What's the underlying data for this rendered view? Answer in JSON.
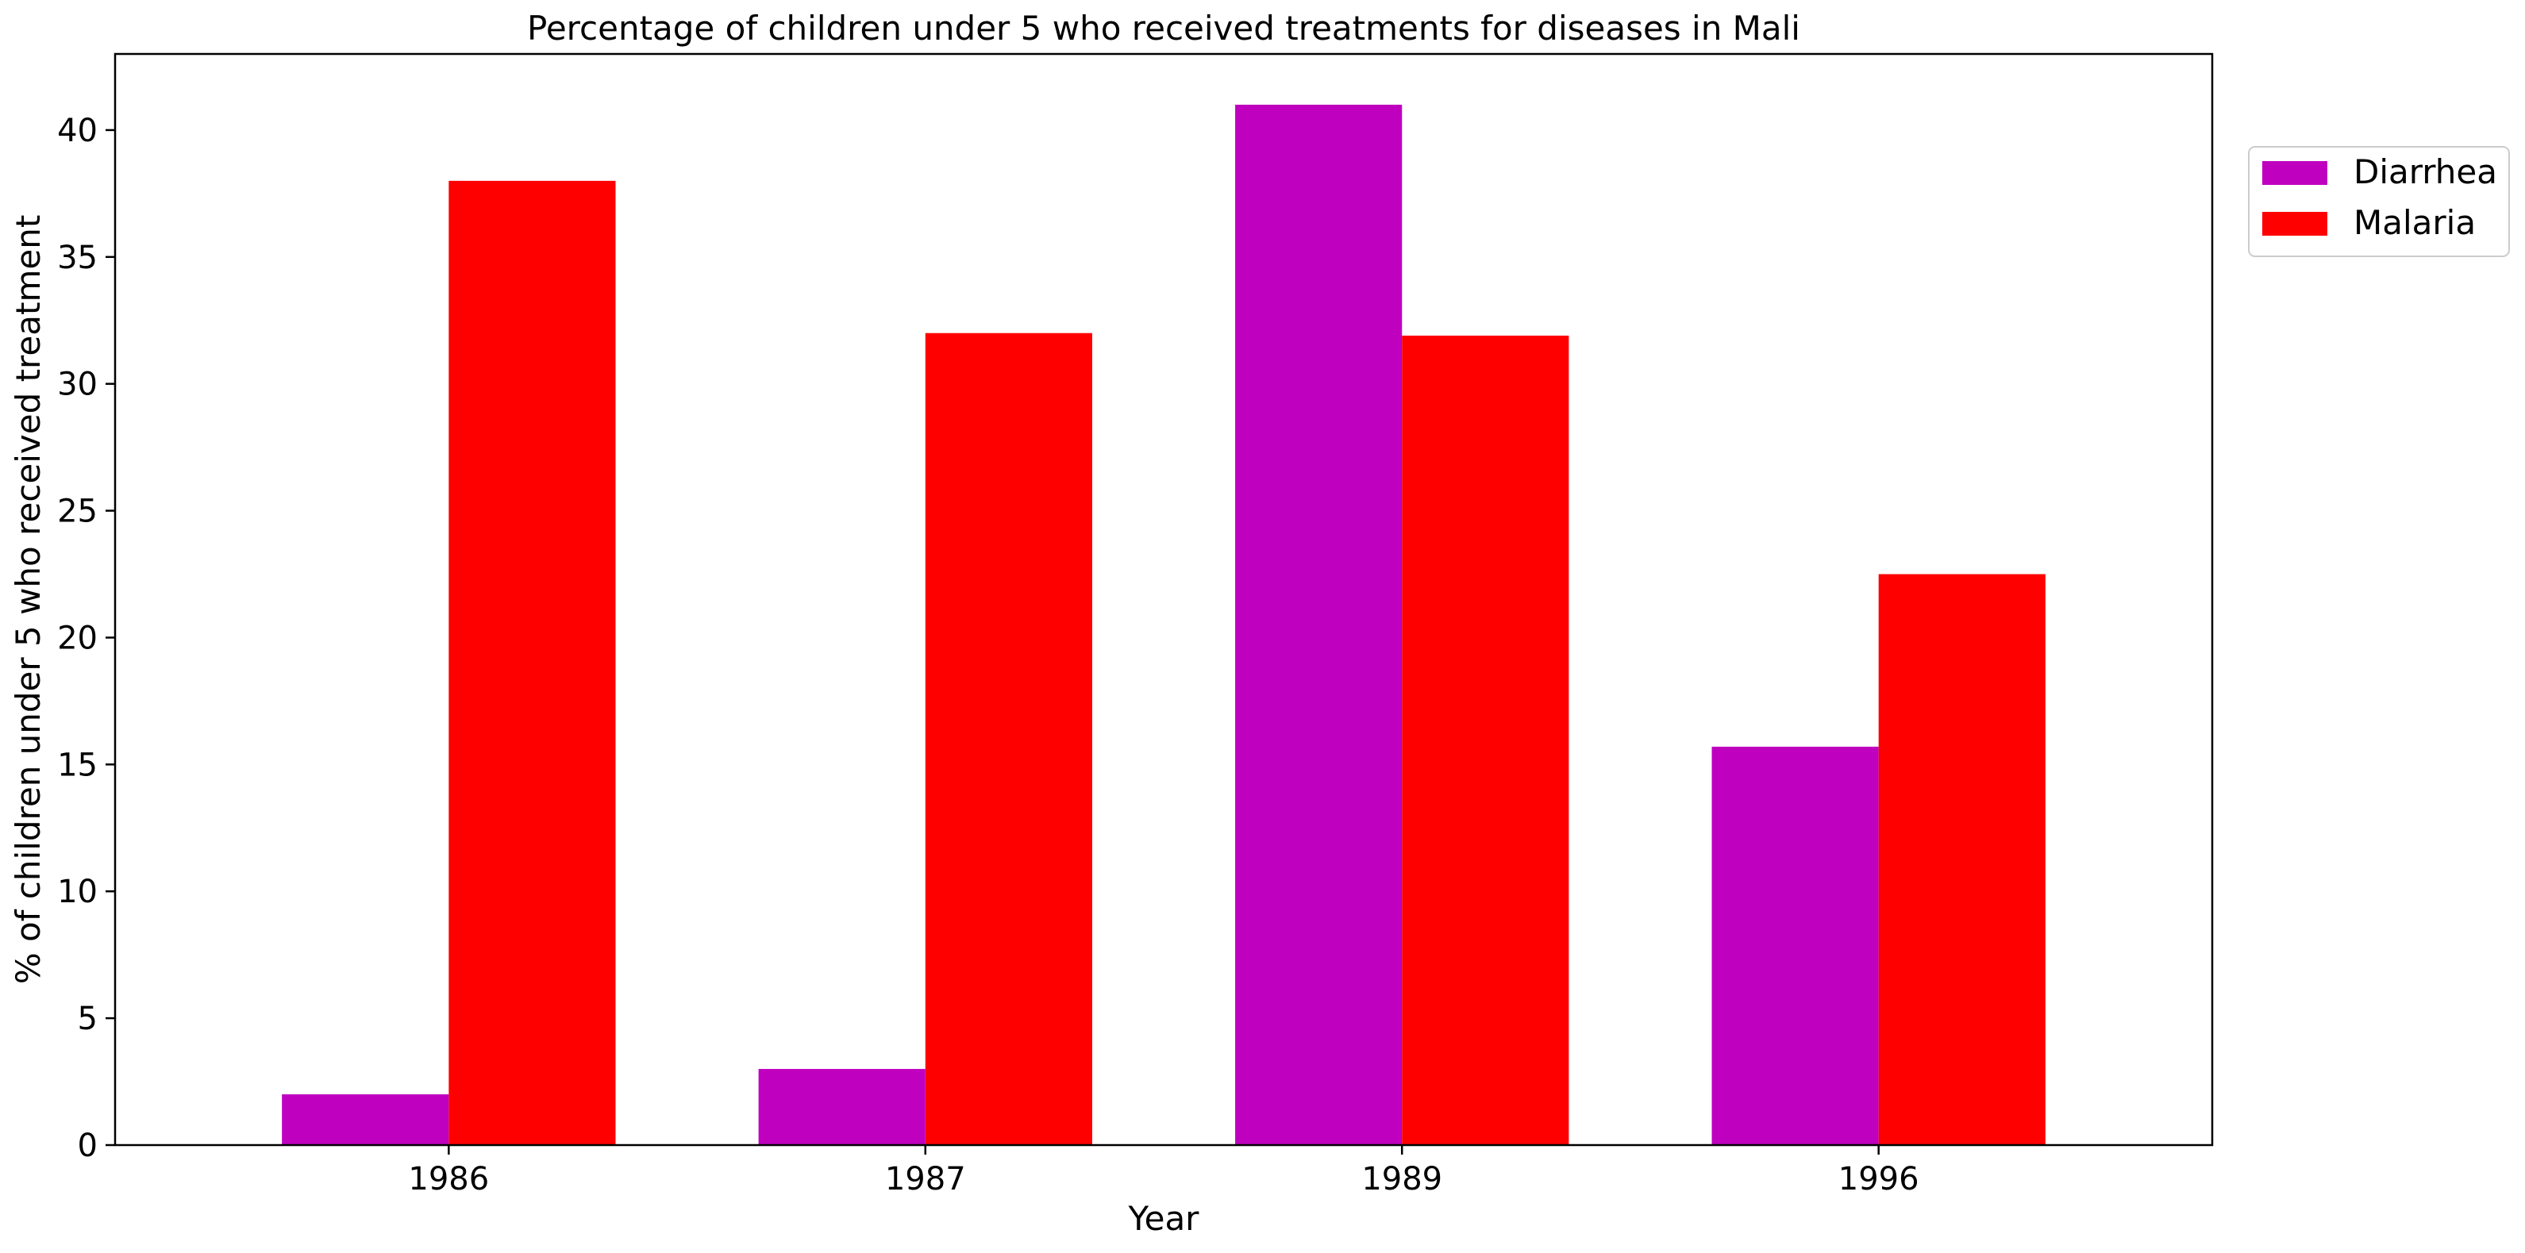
{
  "chart_data": {
    "type": "bar",
    "title": "Percentage of children under 5 who received treatments for diseases in Mali",
    "xlabel": "Year",
    "ylabel": "% of children under 5 who received treatment",
    "categories": [
      "1986",
      "1987",
      "1989",
      "1996"
    ],
    "series": [
      {
        "name": "Diarrhea",
        "values": [
          2.0,
          3.0,
          41.0,
          15.7
        ],
        "color": "#bf00bf"
      },
      {
        "name": "Malaria",
        "values": [
          38.0,
          32.0,
          31.9,
          22.5
        ],
        "color": "#ff0000"
      }
    ],
    "ylim": [
      0,
      43
    ],
    "yticks": [
      0,
      5,
      10,
      15,
      20,
      25,
      30,
      35,
      40
    ],
    "grid": false,
    "legend_position": "outside-top-right"
  }
}
